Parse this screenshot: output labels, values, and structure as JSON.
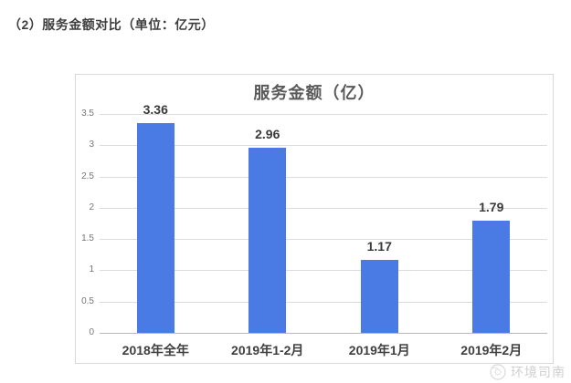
{
  "page": {
    "heading": "（2）服务金额对比（单位：亿元）"
  },
  "chart_data": {
    "type": "bar",
    "title": "服务金额（亿）",
    "categories": [
      "2018年全年",
      "2019年1-2月",
      "2019年1月",
      "2019年2月"
    ],
    "values": [
      3.36,
      2.96,
      1.17,
      1.79
    ],
    "value_labels": [
      "3.36",
      "2.96",
      "1.17",
      "1.79"
    ],
    "xlabel": "",
    "ylabel": "",
    "ylim": [
      0,
      3.5
    ],
    "yticks": [
      0,
      0.5,
      1,
      1.5,
      2,
      2.5,
      3,
      3.5
    ],
    "ytick_labels": [
      "0",
      "0.5",
      "1",
      "1.5",
      "2",
      "2.5",
      "3",
      "3.5"
    ],
    "grid": true,
    "legend_position": "none",
    "bar_color": "#4a7be4"
  },
  "watermark": {
    "text": "环境司南"
  }
}
